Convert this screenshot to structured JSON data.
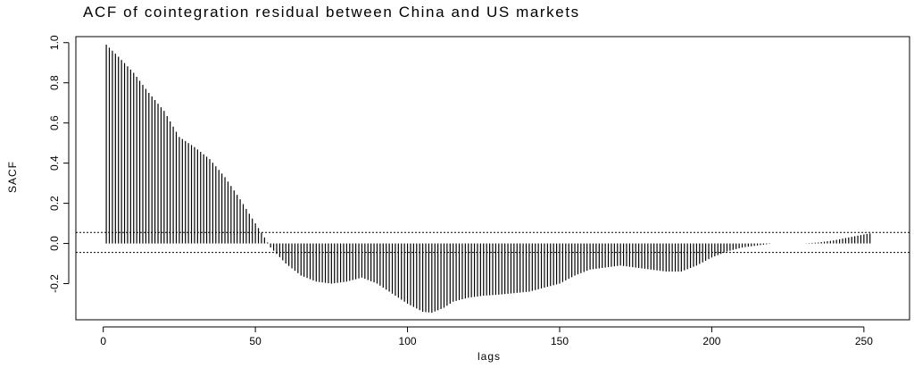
{
  "chart_data": {
    "type": "bar",
    "title": "ACF of cointegration residual between China and US markets",
    "xlabel": "lags",
    "ylabel": "SACF",
    "x_ticks": [
      "0",
      "50",
      "100",
      "150",
      "200",
      "250"
    ],
    "y_ticks": [
      "-0.2",
      "0.0",
      "0.2",
      "0.4",
      "0.6",
      "0.8",
      "1.0"
    ],
    "xlim": [
      -9,
      265
    ],
    "ylim": [
      -0.38,
      1.03
    ],
    "confidence_bounds": [
      0.055,
      -0.045
    ],
    "grid": false,
    "legend": "none",
    "series_description": "sample autocorrelation at lags 1..252 (values at every lag, read from the figure)",
    "anchor_points": [
      [
        1,
        0.99
      ],
      [
        3,
        0.96
      ],
      [
        5,
        0.93
      ],
      [
        10,
        0.85
      ],
      [
        15,
        0.75
      ],
      [
        20,
        0.66
      ],
      [
        25,
        0.53
      ],
      [
        30,
        0.48
      ],
      [
        35,
        0.42
      ],
      [
        40,
        0.33
      ],
      [
        45,
        0.22
      ],
      [
        50,
        0.1
      ],
      [
        53,
        0.03
      ],
      [
        55,
        -0.02
      ],
      [
        60,
        -0.1
      ],
      [
        65,
        -0.16
      ],
      [
        70,
        -0.19
      ],
      [
        75,
        -0.2
      ],
      [
        80,
        -0.19
      ],
      [
        85,
        -0.17
      ],
      [
        90,
        -0.2
      ],
      [
        95,
        -0.25
      ],
      [
        100,
        -0.3
      ],
      [
        105,
        -0.34
      ],
      [
        108,
        -0.345
      ],
      [
        112,
        -0.32
      ],
      [
        115,
        -0.29
      ],
      [
        120,
        -0.27
      ],
      [
        125,
        -0.26
      ],
      [
        130,
        -0.255
      ],
      [
        140,
        -0.24
      ],
      [
        150,
        -0.2
      ],
      [
        155,
        -0.16
      ],
      [
        160,
        -0.13
      ],
      [
        165,
        -0.12
      ],
      [
        170,
        -0.11
      ],
      [
        175,
        -0.12
      ],
      [
        180,
        -0.13
      ],
      [
        185,
        -0.14
      ],
      [
        190,
        -0.14
      ],
      [
        195,
        -0.11
      ],
      [
        200,
        -0.07
      ],
      [
        205,
        -0.04
      ],
      [
        210,
        -0.02
      ],
      [
        215,
        -0.01
      ],
      [
        220,
        0.0
      ],
      [
        225,
        0.0
      ],
      [
        230,
        0.0
      ],
      [
        235,
        0.005
      ],
      [
        240,
        0.015
      ],
      [
        245,
        0.03
      ],
      [
        250,
        0.045
      ],
      [
        252,
        0.05
      ]
    ]
  }
}
